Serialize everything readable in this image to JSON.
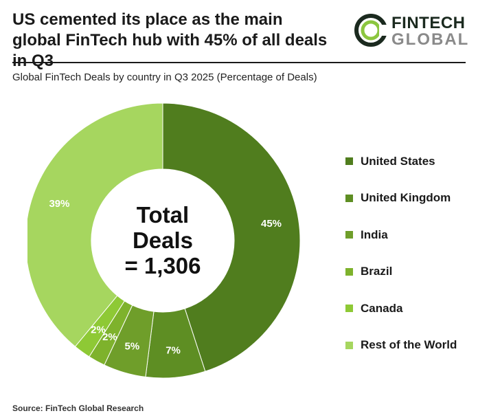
{
  "header": {
    "title": "US cemented its place as the main global FinTech hub with 45% of all deals in Q3",
    "logo_line1": "FINTECH",
    "logo_line2": "GLOBAL"
  },
  "subtitle": "Global FinTech Deals by country in Q3 2025 (Percentage of Deals)",
  "center_label": {
    "line1": "Total",
    "line2": "Deals",
    "line3": "= 1,306"
  },
  "source": "Source: FinTech Global Research",
  "colors": {
    "logo_ring_dark": "#1b2a1f",
    "logo_ring_light": "#8cc63f"
  },
  "chart_data": {
    "type": "pie",
    "title": "Global FinTech Deals by country in Q3 2025 (Percentage of Deals)",
    "donut": true,
    "unit": "%",
    "total_deals": 1306,
    "legend_position": "right",
    "series": [
      {
        "name": "United States",
        "value": 45,
        "label": "45%",
        "color": "#507d1e"
      },
      {
        "name": "United Kingdom",
        "value": 7,
        "label": "7%",
        "color": "#5e8e23"
      },
      {
        "name": "India",
        "value": 5,
        "label": "5%",
        "color": "#6f9e2a"
      },
      {
        "name": "Brazil",
        "value": 2,
        "label": "2%",
        "color": "#7eb22c"
      },
      {
        "name": "Canada",
        "value": 2,
        "label": "2%",
        "color": "#8ec935"
      },
      {
        "name": "Rest of the World",
        "value": 39,
        "label": "39%",
        "color": "#a6d65f"
      }
    ]
  }
}
